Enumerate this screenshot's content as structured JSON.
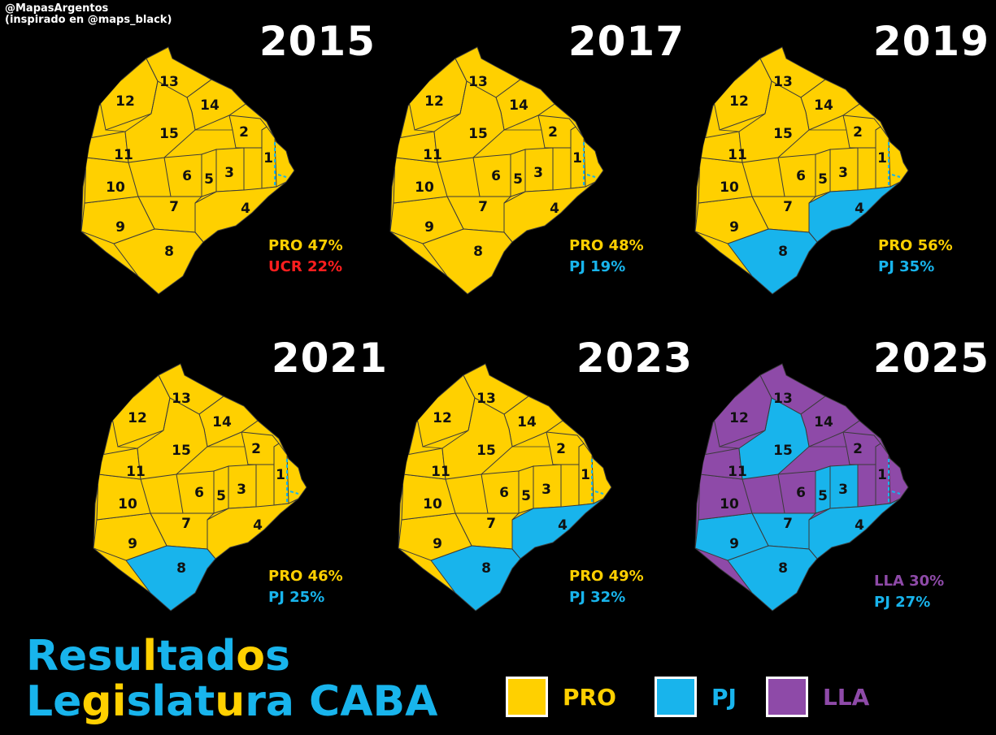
{
  "credit": {
    "line1": "@MapasArgentos",
    "line2": "(inspirado en @maps_black)"
  },
  "colors": {
    "PRO": "#ffd000",
    "PJ": "#18b4ec",
    "LLA": "#8e4aa8",
    "UCR": "#ff1e1e"
  },
  "panels": [
    {
      "year": "2015",
      "first": "PRO 47%",
      "first_party": "PRO",
      "second": "UCR 22%",
      "second_party": "UCR",
      "winners": [
        "PRO",
        "PRO",
        "PRO",
        "PRO",
        "PRO",
        "PRO",
        "PRO",
        "PRO",
        "PRO",
        "PRO",
        "PRO",
        "PRO",
        "PRO",
        "PRO",
        "PRO"
      ]
    },
    {
      "year": "2017",
      "first": "PRO 48%",
      "first_party": "PRO",
      "second": "PJ 19%",
      "second_party": "PJ",
      "winners": [
        "PRO",
        "PRO",
        "PRO",
        "PRO",
        "PRO",
        "PRO",
        "PRO",
        "PRO",
        "PRO",
        "PRO",
        "PRO",
        "PRO",
        "PRO",
        "PRO",
        "PRO"
      ]
    },
    {
      "year": "2019",
      "first": "PRO 56%",
      "first_party": "PRO",
      "second": "PJ 35%",
      "second_party": "PJ",
      "winners": [
        "PRO",
        "PRO",
        "PRO",
        "PJ",
        "PRO",
        "PRO",
        "PRO",
        "PJ",
        "PRO",
        "PRO",
        "PRO",
        "PRO",
        "PRO",
        "PRO",
        "PRO"
      ]
    },
    {
      "year": "2021",
      "first": "PRO 46%",
      "first_party": "PRO",
      "second": "PJ 25%",
      "second_party": "PJ",
      "winners": [
        "PRO",
        "PRO",
        "PRO",
        "PRO",
        "PRO",
        "PRO",
        "PRO",
        "PJ",
        "PRO",
        "PRO",
        "PRO",
        "PRO",
        "PRO",
        "PRO",
        "PRO"
      ]
    },
    {
      "year": "2023",
      "first": "PRO 49%",
      "first_party": "PRO",
      "second": "PJ 32%",
      "second_party": "PJ",
      "winners": [
        "PRO",
        "PRO",
        "PRO",
        "PJ",
        "PRO",
        "PRO",
        "PRO",
        "PJ",
        "PRO",
        "PRO",
        "PRO",
        "PRO",
        "PRO",
        "PRO",
        "PRO"
      ]
    },
    {
      "year": "2025",
      "first": "LLA 30%",
      "first_party": "LLA",
      "second": "PJ 27%",
      "second_party": "PJ",
      "winners": [
        "LLA",
        "LLA",
        "PJ",
        "PJ",
        "PJ",
        "LLA",
        "PJ",
        "PJ",
        "PJ",
        "LLA",
        "LLA",
        "LLA",
        "LLA",
        "LLA",
        "PJ"
      ]
    }
  ],
  "title": {
    "line1": [
      {
        "t": "R",
        "c": "PJ"
      },
      {
        "t": "esu",
        "c": "PJ"
      },
      {
        "t": "l",
        "c": "PRO"
      },
      {
        "t": "tad",
        "c": "PJ"
      },
      {
        "t": "o",
        "c": "PRO"
      },
      {
        "t": "s",
        "c": "PJ"
      }
    ],
    "line2": [
      {
        "t": "Le",
        "c": "PJ"
      },
      {
        "t": "gi",
        "c": "PRO"
      },
      {
        "t": "slat",
        "c": "PJ"
      },
      {
        "t": "u",
        "c": "PRO"
      },
      {
        "t": "ra CABA",
        "c": "PJ"
      }
    ]
  },
  "legend": [
    {
      "party": "PRO",
      "label": "PRO"
    },
    {
      "party": "PJ",
      "label": "PJ"
    },
    {
      "party": "LLA",
      "label": "LLA"
    }
  ]
}
